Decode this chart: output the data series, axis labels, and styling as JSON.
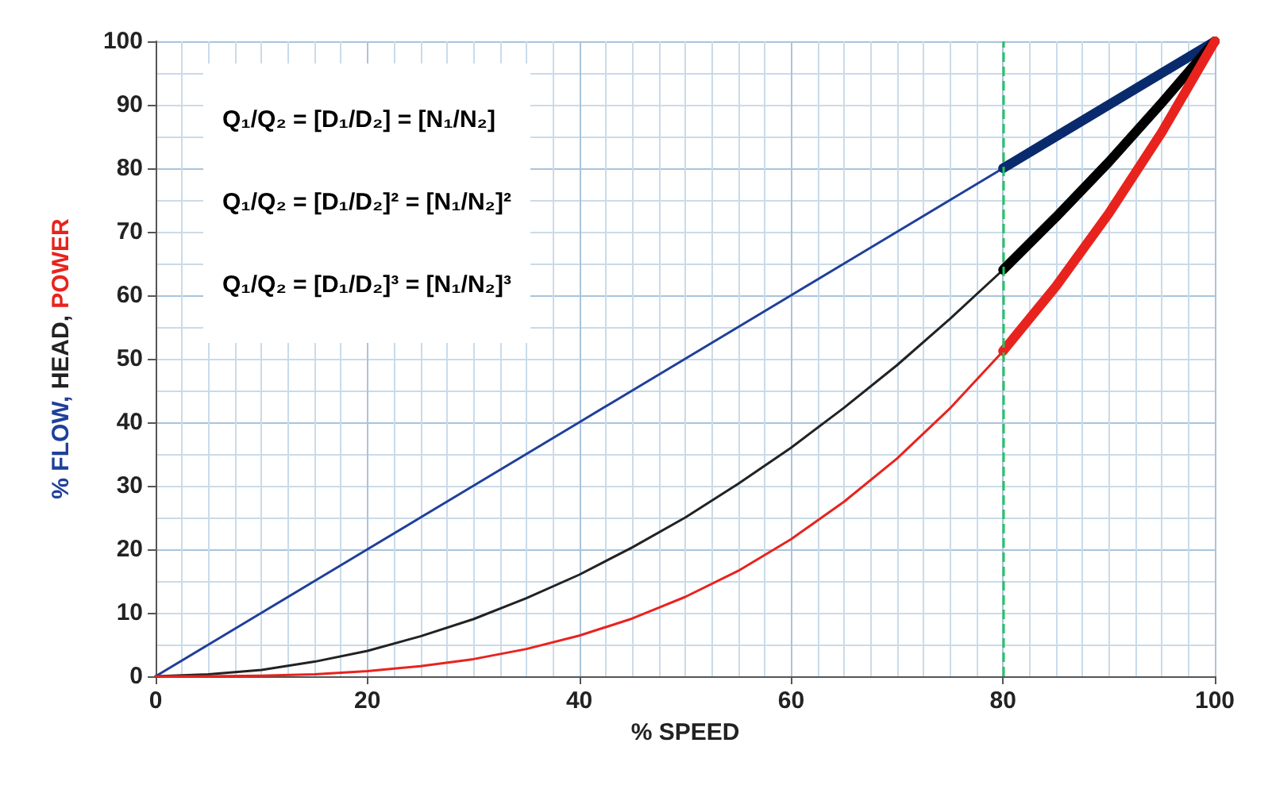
{
  "chart_data": {
    "type": "line",
    "xlabel": "% SPEED",
    "ylabel": "% FLOW, HEAD, POWER",
    "x": [
      0,
      5,
      10,
      15,
      20,
      25,
      30,
      35,
      40,
      45,
      50,
      55,
      60,
      65,
      70,
      75,
      80
    ],
    "series": [
      {
        "color": "#1f3f9a",
        "values": [
          0,
          5,
          10,
          15,
          20,
          25,
          30,
          35,
          40,
          45,
          50,
          55,
          60,
          65,
          70,
          75,
          80
        ]
      },
      {
        "color": "#222222",
        "values": [
          0,
          0.3,
          1,
          2.3,
          4,
          6.3,
          9,
          12.3,
          16,
          20.3,
          25,
          30.3,
          36,
          42.3,
          49,
          56.3,
          64
        ]
      },
      {
        "color": "#e8231e",
        "values": [
          0,
          0,
          0.1,
          0.3,
          0.8,
          1.6,
          2.7,
          4.3,
          6.4,
          9.1,
          12.5,
          16.6,
          21.6,
          27.5,
          34.3,
          42.2,
          51.2
        ]
      },
      {
        "color": "#0a2a6e",
        "x": [
          80,
          85,
          90,
          95,
          100
        ],
        "values": [
          80,
          85,
          90,
          95,
          100
        ]
      },
      {
        "color": "#000000",
        "x": [
          80,
          85,
          90,
          95,
          100
        ],
        "values": [
          64,
          72.3,
          81,
          90.3,
          100
        ]
      },
      {
        "color": "#e8231e",
        "x": [
          80,
          85,
          90,
          95,
          100
        ],
        "values": [
          51.2,
          61.4,
          72.9,
          85.7,
          100
        ]
      }
    ],
    "xlim": [
      0,
      100
    ],
    "xticks": [
      0,
      20,
      40,
      60,
      80,
      100
    ],
    "ylim": [
      0,
      100
    ],
    "yticks": [
      0,
      10,
      20,
      30,
      40,
      50,
      60,
      70,
      80,
      90,
      100
    ],
    "ref_lines": [
      {
        "axis": "x",
        "value": 80,
        "color": "#22c55e",
        "line_style": "dashed"
      }
    ],
    "annotations": [
      "Q₁/Q₂ = [D₁/D₂] = [N₁/N₂]",
      "Q₁/Q₂ = [D₁/D₂]² = [N₁/N₂]²",
      "Q₁/Q₂ = [D₁/D₂]³ = [N₁/N₂]³"
    ],
    "grid": true,
    "marker": "none",
    "line_style": "solid"
  }
}
